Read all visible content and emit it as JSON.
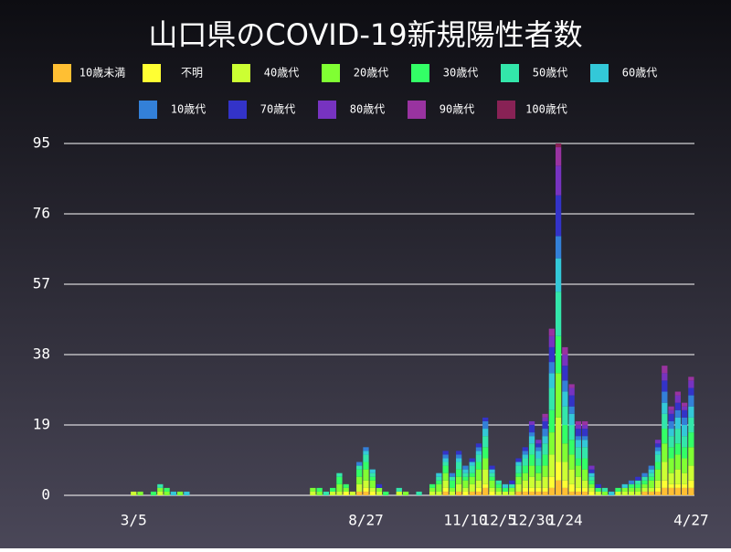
{
  "chart_data": {
    "type": "bar",
    "stacked": true,
    "title": "山口県のCOVID-19新規陽性者数",
    "categories": [
      null,
      null,
      null,
      null,
      null,
      null,
      null,
      null,
      null,
      null,
      "3/5",
      null,
      null,
      null,
      null,
      null,
      null,
      null,
      null,
      null,
      null,
      null,
      null,
      null,
      null,
      null,
      null,
      null,
      null,
      null,
      null,
      null,
      null,
      null,
      null,
      null,
      null,
      null,
      null,
      null,
      null,
      null,
      null,
      null,
      null,
      "8/27",
      null,
      null,
      null,
      null,
      null,
      null,
      null,
      null,
      null,
      null,
      null,
      null,
      null,
      null,
      "11/10",
      null,
      null,
      null,
      null,
      "12/5",
      null,
      null,
      null,
      null,
      "12/30",
      null,
      null,
      null,
      null,
      "1/24",
      null,
      null,
      null,
      null,
      null,
      null,
      null,
      null,
      null,
      null,
      null,
      null,
      null,
      null,
      null,
      null,
      null,
      null,
      "4/27"
    ],
    "series": [
      {
        "name": "10歳未満",
        "color": "#ffbf33",
        "values": [
          0,
          0,
          0,
          0,
          0,
          0,
          0,
          0,
          0,
          0,
          0,
          0,
          0,
          0,
          0,
          0,
          0,
          0,
          0,
          0,
          0,
          0,
          0,
          0,
          0,
          0,
          0,
          0,
          0,
          0,
          0,
          0,
          0,
          0,
          0,
          0,
          0,
          0,
          0,
          0,
          0,
          0,
          0,
          0,
          1,
          1,
          0,
          0,
          0,
          0,
          0,
          0,
          0,
          0,
          0,
          0,
          0,
          1,
          0,
          1,
          0,
          1,
          1,
          2,
          0,
          0,
          0,
          0,
          1,
          1,
          1,
          1,
          1,
          2,
          4,
          2,
          1,
          1,
          1,
          0,
          0,
          0,
          0,
          0,
          0,
          0,
          0,
          1,
          1,
          1,
          2,
          2,
          2,
          2,
          2
        ]
      },
      {
        "name": "不明",
        "color": "#ffff33",
        "values": [
          0,
          0,
          0,
          0,
          0,
          0,
          0,
          0,
          0,
          0,
          0,
          0,
          0,
          0,
          0,
          0,
          0,
          0,
          0,
          0,
          0,
          0,
          0,
          0,
          0,
          0,
          0,
          0,
          0,
          0,
          0,
          0,
          0,
          0,
          0,
          0,
          0,
          0,
          0,
          0,
          0,
          0,
          1,
          0,
          0,
          1,
          1,
          0,
          0,
          0,
          0,
          0,
          0,
          0,
          0,
          0,
          0,
          1,
          0,
          0,
          1,
          0,
          1,
          1,
          1,
          0,
          0,
          0,
          0,
          1,
          1,
          1,
          1,
          3,
          5,
          2,
          2,
          1,
          1,
          1,
          0,
          0,
          0,
          0,
          0,
          0,
          0,
          0,
          0,
          1,
          2,
          1,
          1,
          1,
          2
        ]
      },
      {
        "name": "40歳代",
        "color": "#ccff33",
        "values": [
          0,
          0,
          0,
          0,
          0,
          0,
          0,
          0,
          0,
          0,
          1,
          0,
          0,
          0,
          1,
          0,
          0,
          0,
          0,
          0,
          0,
          0,
          0,
          0,
          0,
          0,
          0,
          0,
          0,
          0,
          0,
          0,
          0,
          0,
          0,
          0,
          0,
          1,
          0,
          0,
          1,
          1,
          0,
          1,
          2,
          2,
          1,
          1,
          0,
          0,
          1,
          0,
          0,
          0,
          0,
          1,
          1,
          2,
          1,
          2,
          1,
          2,
          2,
          4,
          1,
          1,
          1,
          1,
          2,
          2,
          3,
          2,
          3,
          6,
          12,
          5,
          4,
          3,
          2,
          1,
          1,
          0,
          0,
          1,
          1,
          1,
          1,
          1,
          1,
          2,
          5,
          3,
          4,
          3,
          4
        ]
      },
      {
        "name": "20歳代",
        "color": "#80ff33",
        "values": [
          0,
          0,
          0,
          0,
          0,
          0,
          0,
          0,
          0,
          0,
          0,
          1,
          0,
          0,
          1,
          1,
          0,
          1,
          0,
          0,
          0,
          0,
          0,
          0,
          0,
          0,
          0,
          0,
          0,
          0,
          0,
          0,
          0,
          0,
          0,
          0,
          0,
          1,
          1,
          0,
          0,
          2,
          1,
          0,
          2,
          3,
          2,
          1,
          0,
          0,
          0,
          1,
          0,
          0,
          0,
          1,
          2,
          2,
          1,
          2,
          2,
          2,
          3,
          3,
          2,
          1,
          0,
          1,
          2,
          2,
          3,
          2,
          3,
          6,
          12,
          5,
          4,
          3,
          3,
          1,
          0,
          1,
          0,
          0,
          1,
          1,
          1,
          1,
          2,
          3,
          5,
          4,
          4,
          4,
          5
        ]
      },
      {
        "name": "30歳代",
        "color": "#33ff66",
        "values": [
          0,
          0,
          0,
          0,
          0,
          0,
          0,
          0,
          0,
          0,
          0,
          0,
          0,
          1,
          0,
          1,
          0,
          0,
          0,
          0,
          0,
          0,
          0,
          0,
          0,
          0,
          0,
          0,
          0,
          0,
          0,
          0,
          0,
          0,
          0,
          0,
          0,
          0,
          1,
          0,
          1,
          2,
          1,
          0,
          2,
          2,
          1,
          0,
          1,
          0,
          0,
          0,
          0,
          0,
          0,
          1,
          1,
          2,
          2,
          2,
          1,
          1,
          2,
          3,
          1,
          1,
          1,
          0,
          1,
          2,
          3,
          2,
          3,
          6,
          10,
          5,
          4,
          2,
          3,
          1,
          1,
          0,
          0,
          1,
          0,
          1,
          1,
          1,
          1,
          2,
          4,
          3,
          3,
          3,
          4
        ]
      },
      {
        "name": "50歳代",
        "color": "#33e6aa",
        "values": [
          0,
          0,
          0,
          0,
          0,
          0,
          0,
          0,
          0,
          0,
          0,
          0,
          0,
          0,
          1,
          0,
          0,
          0,
          0,
          0,
          0,
          0,
          0,
          0,
          0,
          0,
          0,
          0,
          0,
          0,
          0,
          0,
          0,
          0,
          0,
          0,
          0,
          0,
          0,
          1,
          0,
          1,
          0,
          0,
          1,
          2,
          1,
          0,
          0,
          0,
          1,
          0,
          0,
          1,
          0,
          0,
          1,
          1,
          1,
          2,
          1,
          2,
          2,
          3,
          1,
          1,
          0,
          1,
          2,
          2,
          3,
          2,
          3,
          6,
          12,
          5,
          4,
          3,
          3,
          1,
          0,
          1,
          0,
          0,
          0,
          0,
          1,
          1,
          1,
          2,
          4,
          3,
          4,
          3,
          4
        ]
      },
      {
        "name": "60歳代",
        "color": "#33c8d8",
        "values": [
          0,
          0,
          0,
          0,
          0,
          0,
          0,
          0,
          0,
          0,
          0,
          0,
          0,
          0,
          0,
          0,
          1,
          0,
          1,
          0,
          0,
          0,
          0,
          0,
          0,
          0,
          0,
          0,
          0,
          0,
          0,
          0,
          0,
          0,
          0,
          0,
          0,
          0,
          0,
          0,
          0,
          0,
          0,
          0,
          0,
          1,
          1,
          0,
          0,
          0,
          0,
          0,
          0,
          0,
          0,
          0,
          1,
          1,
          0,
          1,
          1,
          1,
          1,
          2,
          1,
          0,
          1,
          0,
          1,
          1,
          2,
          2,
          2,
          4,
          9,
          4,
          3,
          2,
          2,
          1,
          0,
          0,
          1,
          0,
          1,
          0,
          0,
          0,
          1,
          1,
          3,
          2,
          3,
          3,
          3
        ]
      },
      {
        "name": "10歳代",
        "color": "#3380d8",
        "values": [
          0,
          0,
          0,
          0,
          0,
          0,
          0,
          0,
          0,
          0,
          0,
          0,
          0,
          0,
          0,
          0,
          0,
          0,
          0,
          0,
          0,
          0,
          0,
          0,
          0,
          0,
          0,
          0,
          0,
          0,
          0,
          0,
          0,
          0,
          0,
          0,
          0,
          0,
          0,
          0,
          0,
          0,
          0,
          0,
          1,
          1,
          0,
          0,
          0,
          0,
          0,
          0,
          0,
          0,
          0,
          0,
          0,
          1,
          1,
          1,
          1,
          0,
          1,
          2,
          0,
          0,
          0,
          0,
          0,
          1,
          1,
          1,
          2,
          3,
          6,
          3,
          2,
          1,
          1,
          0,
          0,
          0,
          0,
          0,
          0,
          1,
          0,
          1,
          1,
          1,
          3,
          2,
          2,
          2,
          3
        ]
      },
      {
        "name": "70歳代",
        "color": "#3333c8",
        "values": [
          0,
          0,
          0,
          0,
          0,
          0,
          0,
          0,
          0,
          0,
          0,
          0,
          0,
          0,
          0,
          0,
          0,
          0,
          0,
          0,
          0,
          0,
          0,
          0,
          0,
          0,
          0,
          0,
          0,
          0,
          0,
          0,
          0,
          0,
          0,
          0,
          0,
          0,
          0,
          0,
          0,
          0,
          0,
          0,
          0,
          0,
          0,
          1,
          0,
          0,
          0,
          0,
          0,
          0,
          0,
          0,
          0,
          1,
          0,
          1,
          0,
          1,
          1,
          1,
          1,
          0,
          0,
          1,
          1,
          1,
          2,
          1,
          2,
          4,
          11,
          4,
          3,
          2,
          2,
          1,
          1,
          0,
          0,
          0,
          0,
          0,
          1,
          0,
          0,
          1,
          3,
          2,
          2,
          2,
          2
        ]
      },
      {
        "name": "80歳代",
        "color": "#7733c0",
        "values": [
          0,
          0,
          0,
          0,
          0,
          0,
          0,
          0,
          0,
          0,
          0,
          0,
          0,
          0,
          0,
          0,
          0,
          0,
          0,
          0,
          0,
          0,
          0,
          0,
          0,
          0,
          0,
          0,
          0,
          0,
          0,
          0,
          0,
          0,
          0,
          0,
          0,
          0,
          0,
          0,
          0,
          0,
          0,
          0,
          0,
          0,
          0,
          0,
          0,
          0,
          0,
          0,
          0,
          0,
          0,
          0,
          0,
          0,
          0,
          0,
          0,
          0,
          0,
          0,
          0,
          0,
          0,
          0,
          0,
          0,
          1,
          1,
          1,
          3,
          8,
          3,
          2,
          1,
          1,
          1,
          0,
          0,
          0,
          0,
          0,
          0,
          0,
          0,
          0,
          1,
          2,
          1,
          2,
          1,
          2
        ]
      },
      {
        "name": "90歳代",
        "color": "#9933a0",
        "values": [
          0,
          0,
          0,
          0,
          0,
          0,
          0,
          0,
          0,
          0,
          0,
          0,
          0,
          0,
          0,
          0,
          0,
          0,
          0,
          0,
          0,
          0,
          0,
          0,
          0,
          0,
          0,
          0,
          0,
          0,
          0,
          0,
          0,
          0,
          0,
          0,
          0,
          0,
          0,
          0,
          0,
          0,
          0,
          0,
          0,
          0,
          0,
          0,
          0,
          0,
          0,
          0,
          0,
          0,
          0,
          0,
          0,
          0,
          0,
          0,
          0,
          0,
          0,
          0,
          0,
          0,
          0,
          0,
          0,
          0,
          0,
          0,
          1,
          2,
          5,
          2,
          1,
          1,
          1,
          0,
          0,
          0,
          0,
          0,
          0,
          0,
          0,
          0,
          0,
          0,
          2,
          1,
          1,
          1,
          1
        ]
      },
      {
        "name": "100歳代",
        "color": "#882255",
        "values": [
          0,
          0,
          0,
          0,
          0,
          0,
          0,
          0,
          0,
          0,
          0,
          0,
          0,
          0,
          0,
          0,
          0,
          0,
          0,
          0,
          0,
          0,
          0,
          0,
          0,
          0,
          0,
          0,
          0,
          0,
          0,
          0,
          0,
          0,
          0,
          0,
          0,
          0,
          0,
          0,
          0,
          0,
          0,
          0,
          0,
          0,
          0,
          0,
          0,
          0,
          0,
          0,
          0,
          0,
          0,
          0,
          0,
          0,
          0,
          0,
          0,
          0,
          0,
          0,
          0,
          0,
          0,
          0,
          0,
          0,
          0,
          0,
          0,
          0,
          1,
          0,
          0,
          0,
          0,
          0,
          0,
          0,
          0,
          0,
          0,
          0,
          0,
          0,
          0,
          0,
          0,
          0,
          0,
          0,
          0
        ]
      }
    ],
    "ylim": [
      0,
      95
    ],
    "yticks": [
      0,
      19,
      38,
      57,
      76,
      95
    ],
    "grid": true
  }
}
